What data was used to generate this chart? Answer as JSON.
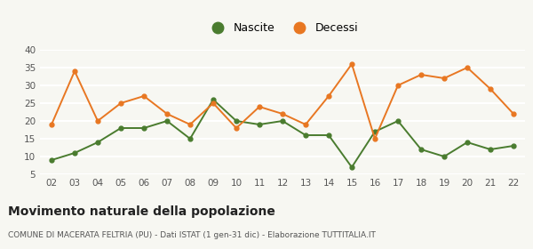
{
  "years": [
    "02",
    "03",
    "04",
    "05",
    "06",
    "07",
    "08",
    "09",
    "10",
    "11",
    "12",
    "13",
    "14",
    "15",
    "16",
    "17",
    "18",
    "19",
    "20",
    "21",
    "22"
  ],
  "nascite": [
    9,
    11,
    14,
    18,
    18,
    20,
    15,
    26,
    20,
    19,
    20,
    16,
    16,
    7,
    17,
    20,
    12,
    10,
    14,
    12,
    13
  ],
  "decessi": [
    19,
    34,
    20,
    25,
    27,
    22,
    19,
    25,
    18,
    24,
    22,
    19,
    27,
    36,
    15,
    30,
    33,
    32,
    35,
    29,
    22
  ],
  "nascite_color": "#4a7c2f",
  "decessi_color": "#e87722",
  "title": "Movimento naturale della popolazione",
  "subtitle": "COMUNE DI MACERATA FELTRIA (PU) - Dati ISTAT (1 gen-31 dic) - Elaborazione TUTTITALIA.IT",
  "legend_nascite": "Nascite",
  "legend_decessi": "Decessi",
  "ylim": [
    5,
    40
  ],
  "yticks": [
    5,
    10,
    15,
    20,
    25,
    30,
    35,
    40
  ],
  "bg_color": "#f7f7f2",
  "grid_color": "#ffffff"
}
